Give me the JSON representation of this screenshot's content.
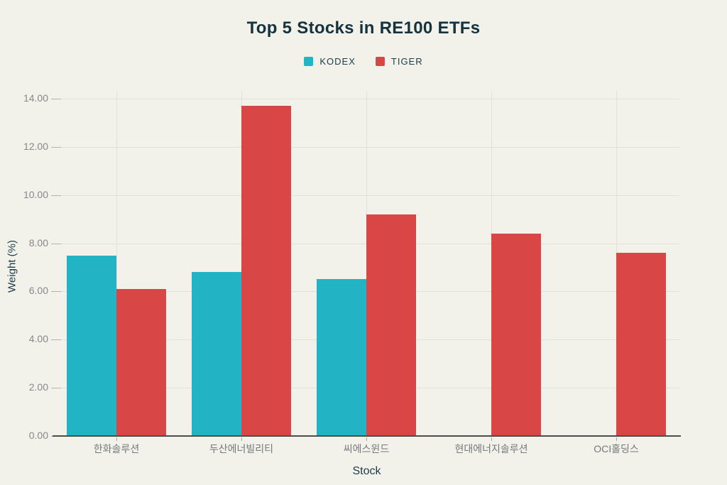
{
  "page": {
    "background_color": "#f2f1ea"
  },
  "chart_data": {
    "type": "bar",
    "title": "Top 5 Stocks in RE100 ETFs",
    "xlabel": "Stock",
    "ylabel": "Weight (%)",
    "categories": [
      "한화솔루션",
      "두산에너빌리티",
      "씨에스윈드",
      "현대에너지솔루션",
      "OCI홀딩스"
    ],
    "series": [
      {
        "name": "KODEX",
        "color": "#22b4c5",
        "values": [
          7.5,
          6.8,
          6.5,
          null,
          null
        ]
      },
      {
        "name": "TIGER",
        "color": "#d84745",
        "values": [
          6.1,
          13.7,
          9.2,
          8.4,
          7.6
        ]
      }
    ],
    "ylim": [
      0,
      14
    ],
    "ytick_step": 2,
    "ytick_labels": [
      "0.00",
      "2.00",
      "4.00",
      "6.00",
      "8.00",
      "10.00",
      "12.00",
      "14.00"
    ],
    "grid": true,
    "legend_position": "top"
  }
}
